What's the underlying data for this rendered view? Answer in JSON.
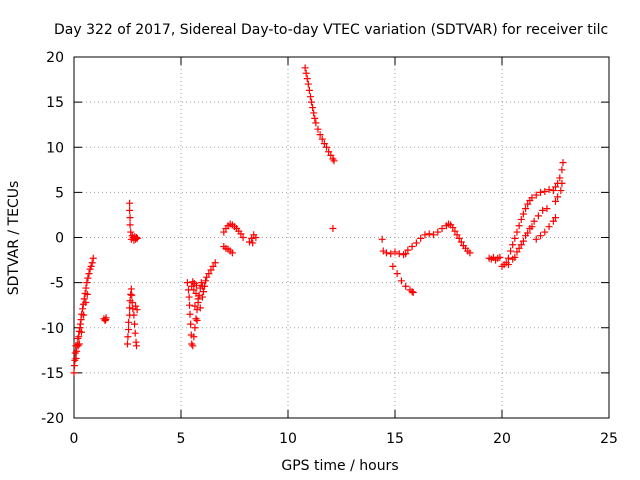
{
  "chart_data": {
    "type": "scatter",
    "title": "Day 322 of 2017, Sidereal Day-to-day VTEC variation (SDTVAR) for receiver tilc",
    "xlabel": "GPS time / hours",
    "ylabel": "SDTVAR / TECUs",
    "xlim": [
      0,
      25
    ],
    "ylim": [
      -20,
      20
    ],
    "xticks": [
      0,
      5,
      10,
      15,
      20,
      25
    ],
    "yticks": [
      -20,
      -15,
      -10,
      -5,
      0,
      5,
      10,
      15,
      20
    ],
    "xtick_labels": [
      "0",
      "5",
      "10",
      "15",
      "20",
      "25"
    ],
    "ytick_labels": [
      "-20",
      "-15",
      "-10",
      "-5",
      "0",
      "5",
      "10",
      "15",
      "20"
    ],
    "grid": true,
    "marker": "+",
    "color": "#ff0000",
    "series": [
      {
        "points": [
          [
            0.0,
            -15.0
          ],
          [
            0.02,
            -14.2
          ],
          [
            0.04,
            -13.6
          ],
          [
            0.06,
            -12.8
          ],
          [
            0.08,
            -12.0
          ],
          [
            0.1,
            -13.4
          ],
          [
            0.12,
            -12.6
          ],
          [
            0.15,
            -11.9
          ],
          [
            0.18,
            -11.2
          ],
          [
            0.2,
            -12.0
          ],
          [
            0.22,
            -11.0
          ],
          [
            0.25,
            -10.4
          ],
          [
            0.28,
            -10.0
          ],
          [
            0.3,
            -9.6
          ],
          [
            0.33,
            -9.1
          ],
          [
            0.36,
            -8.5
          ],
          [
            0.4,
            -7.9
          ],
          [
            0.44,
            -7.4
          ],
          [
            0.48,
            -6.8
          ],
          [
            0.52,
            -6.2
          ],
          [
            0.56,
            -5.6
          ],
          [
            0.6,
            -5.0
          ],
          [
            0.65,
            -4.5
          ],
          [
            0.7,
            -4.0
          ],
          [
            0.75,
            -3.5
          ],
          [
            0.8,
            -3.2
          ],
          [
            0.85,
            -2.8
          ],
          [
            0.9,
            -2.3
          ],
          [
            0.35,
            -10.5
          ],
          [
            0.25,
            -11.8
          ],
          [
            0.45,
            -8.6
          ],
          [
            0.55,
            -7.2
          ],
          [
            0.62,
            -6.3
          ]
        ]
      },
      {
        "points": [
          [
            1.4,
            -9.0
          ],
          [
            1.45,
            -9.2
          ],
          [
            1.5,
            -8.9
          ],
          [
            1.48,
            -9.1
          ]
        ]
      },
      {
        "points": [
          [
            2.5,
            -11.8
          ],
          [
            2.52,
            -11.0
          ],
          [
            2.55,
            -10.2
          ],
          [
            2.55,
            -9.4
          ],
          [
            2.6,
            -8.6
          ],
          [
            2.6,
            -7.8
          ],
          [
            2.62,
            -7.0
          ],
          [
            2.65,
            -6.3
          ],
          [
            2.68,
            -5.7
          ],
          [
            2.7,
            -6.4
          ],
          [
            2.72,
            -7.2
          ],
          [
            2.75,
            -7.9
          ],
          [
            2.8,
            -8.6
          ],
          [
            2.83,
            -9.6
          ],
          [
            2.86,
            -10.6
          ],
          [
            2.9,
            -11.6
          ],
          [
            2.92,
            -12.0
          ],
          [
            2.95,
            -8.0
          ],
          [
            2.88,
            -7.6
          ],
          [
            2.6,
            3.8
          ],
          [
            2.6,
            3.0
          ],
          [
            2.62,
            2.2
          ],
          [
            2.62,
            1.4
          ],
          [
            2.65,
            0.6
          ],
          [
            2.68,
            -0.2
          ],
          [
            2.72,
            0.2
          ],
          [
            2.76,
            0.0
          ],
          [
            2.8,
            -0.3
          ],
          [
            2.84,
            0.1
          ],
          [
            2.88,
            -0.2
          ],
          [
            2.92,
            0.0
          ],
          [
            2.96,
            -0.1
          ]
        ]
      },
      {
        "points": [
          [
            5.3,
            -5.0
          ],
          [
            5.35,
            -5.8
          ],
          [
            5.38,
            -6.6
          ],
          [
            5.4,
            -7.5
          ],
          [
            5.42,
            -8.5
          ],
          [
            5.45,
            -9.6
          ],
          [
            5.48,
            -10.8
          ],
          [
            5.5,
            -11.8
          ],
          [
            5.55,
            -12.0
          ],
          [
            5.6,
            -11.0
          ],
          [
            5.65,
            -10.0
          ],
          [
            5.7,
            -9.0
          ],
          [
            5.75,
            -8.0
          ],
          [
            5.8,
            -7.2
          ],
          [
            5.85,
            -6.4
          ],
          [
            5.9,
            -5.6
          ],
          [
            5.95,
            -5.0
          ],
          [
            6.0,
            -5.4
          ],
          [
            6.05,
            -6.0
          ],
          [
            6.1,
            -5.4
          ],
          [
            6.15,
            -4.8
          ],
          [
            6.2,
            -4.4
          ],
          [
            6.3,
            -4.0
          ],
          [
            6.4,
            -3.6
          ],
          [
            6.5,
            -3.2
          ],
          [
            6.6,
            -2.8
          ],
          [
            5.5,
            -5.4
          ],
          [
            5.6,
            -5.8
          ],
          [
            5.7,
            -6.2
          ],
          [
            5.8,
            -6.8
          ],
          [
            5.65,
            -7.6
          ],
          [
            5.75,
            -9.2
          ],
          [
            5.9,
            -7.8
          ],
          [
            6.0,
            -6.6
          ],
          [
            5.55,
            -4.9
          ],
          [
            5.62,
            -5.1
          ],
          [
            5.72,
            -5.3
          ]
        ]
      },
      {
        "points": [
          [
            7.0,
            -1.0
          ],
          [
            7.1,
            -1.2
          ],
          [
            7.2,
            -1.3
          ],
          [
            7.3,
            -1.5
          ],
          [
            7.4,
            -1.7
          ],
          [
            7.0,
            0.6
          ],
          [
            7.1,
            1.0
          ],
          [
            7.2,
            1.3
          ],
          [
            7.3,
            1.5
          ],
          [
            7.4,
            1.4
          ],
          [
            7.5,
            1.2
          ],
          [
            7.6,
            1.0
          ],
          [
            7.7,
            0.7
          ],
          [
            7.8,
            0.4
          ],
          [
            7.9,
            0.0
          ],
          [
            8.2,
            -0.5
          ],
          [
            8.3,
            -0.1
          ],
          [
            8.4,
            0.3
          ],
          [
            8.5,
            0.0
          ],
          [
            8.35,
            -0.6
          ]
        ]
      },
      {
        "points": [
          [
            10.8,
            18.8
          ],
          [
            10.85,
            18.2
          ],
          [
            10.9,
            17.6
          ],
          [
            10.95,
            17.0
          ],
          [
            11.0,
            16.3
          ],
          [
            11.05,
            15.6
          ],
          [
            11.1,
            15.0
          ],
          [
            11.15,
            14.4
          ],
          [
            11.2,
            13.8
          ],
          [
            11.25,
            13.2
          ],
          [
            11.3,
            12.7
          ],
          [
            11.4,
            12.0
          ],
          [
            11.5,
            11.4
          ],
          [
            11.6,
            10.9
          ],
          [
            11.7,
            10.4
          ],
          [
            11.8,
            10.0
          ],
          [
            11.9,
            9.5
          ],
          [
            12.0,
            9.1
          ],
          [
            12.1,
            8.7
          ],
          [
            12.15,
            8.5
          ],
          [
            12.1,
            1.0
          ]
        ]
      },
      {
        "points": [
          [
            14.4,
            -0.2
          ],
          [
            14.45,
            -1.5
          ],
          [
            14.6,
            -1.7
          ],
          [
            14.8,
            -1.8
          ],
          [
            15.0,
            -1.6
          ],
          [
            15.2,
            -1.8
          ],
          [
            15.4,
            -1.9
          ],
          [
            15.5,
            -1.8
          ],
          [
            14.9,
            -3.2
          ],
          [
            15.1,
            -4.0
          ],
          [
            15.3,
            -4.8
          ],
          [
            15.5,
            -5.4
          ],
          [
            15.7,
            -5.8
          ],
          [
            15.8,
            -6.0
          ],
          [
            15.85,
            -6.1
          ]
        ]
      },
      {
        "points": [
          [
            15.6,
            -1.4
          ],
          [
            15.8,
            -1.0
          ],
          [
            16.0,
            -0.6
          ],
          [
            16.2,
            -0.1
          ],
          [
            16.4,
            0.3
          ],
          [
            16.6,
            0.4
          ],
          [
            16.8,
            0.3
          ],
          [
            17.0,
            0.6
          ],
          [
            17.2,
            1.0
          ],
          [
            17.4,
            1.3
          ],
          [
            17.5,
            1.5
          ],
          [
            17.6,
            1.4
          ],
          [
            17.7,
            1.1
          ],
          [
            17.8,
            0.7
          ],
          [
            17.9,
            0.3
          ],
          [
            18.0,
            -0.1
          ],
          [
            18.1,
            -0.5
          ],
          [
            18.2,
            -0.9
          ],
          [
            18.3,
            -1.2
          ],
          [
            18.4,
            -1.5
          ],
          [
            18.5,
            -1.7
          ]
        ]
      },
      {
        "points": [
          [
            19.4,
            -2.3
          ],
          [
            19.5,
            -2.4
          ],
          [
            19.6,
            -2.2
          ],
          [
            19.7,
            -2.5
          ],
          [
            19.8,
            -2.3
          ],
          [
            19.9,
            -2.2
          ],
          [
            20.0,
            -3.2
          ],
          [
            20.1,
            -3.0
          ],
          [
            20.2,
            -2.8
          ],
          [
            20.3,
            -2.3
          ],
          [
            20.4,
            -1.5
          ],
          [
            20.5,
            -0.8
          ],
          [
            20.6,
            -0.1
          ],
          [
            20.7,
            0.6
          ],
          [
            20.8,
            1.3
          ],
          [
            20.9,
            2.0
          ],
          [
            21.0,
            2.6
          ],
          [
            21.1,
            3.2
          ],
          [
            21.2,
            3.7
          ],
          [
            21.3,
            4.1
          ],
          [
            21.4,
            4.4
          ],
          [
            21.6,
            4.7
          ],
          [
            21.8,
            5.0
          ],
          [
            22.0,
            5.1
          ],
          [
            22.2,
            5.3
          ],
          [
            22.4,
            5.2
          ],
          [
            22.5,
            5.6
          ],
          [
            22.6,
            6.0
          ],
          [
            22.7,
            6.6
          ],
          [
            22.8,
            7.5
          ],
          [
            22.85,
            8.3
          ],
          [
            22.8,
            6.0
          ],
          [
            22.75,
            5.2
          ],
          [
            22.6,
            4.5
          ],
          [
            22.5,
            4.0
          ],
          [
            20.3,
            -3.0
          ],
          [
            20.5,
            -2.4
          ],
          [
            20.7,
            -1.6
          ],
          [
            20.9,
            -0.8
          ],
          [
            21.1,
            0.2
          ],
          [
            21.3,
            1.0
          ],
          [
            21.5,
            1.8
          ],
          [
            21.7,
            2.4
          ],
          [
            21.9,
            3.0
          ],
          [
            22.1,
            3.2
          ],
          [
            20.6,
            -2.2
          ],
          [
            20.8,
            -1.2
          ],
          [
            21.0,
            -0.4
          ],
          [
            21.2,
            0.5
          ],
          [
            21.4,
            1.2
          ],
          [
            21.6,
            -0.2
          ],
          [
            21.8,
            0.2
          ],
          [
            22.0,
            0.6
          ],
          [
            22.2,
            1.2
          ],
          [
            22.4,
            1.8
          ],
          [
            22.5,
            2.2
          ]
        ]
      }
    ]
  }
}
